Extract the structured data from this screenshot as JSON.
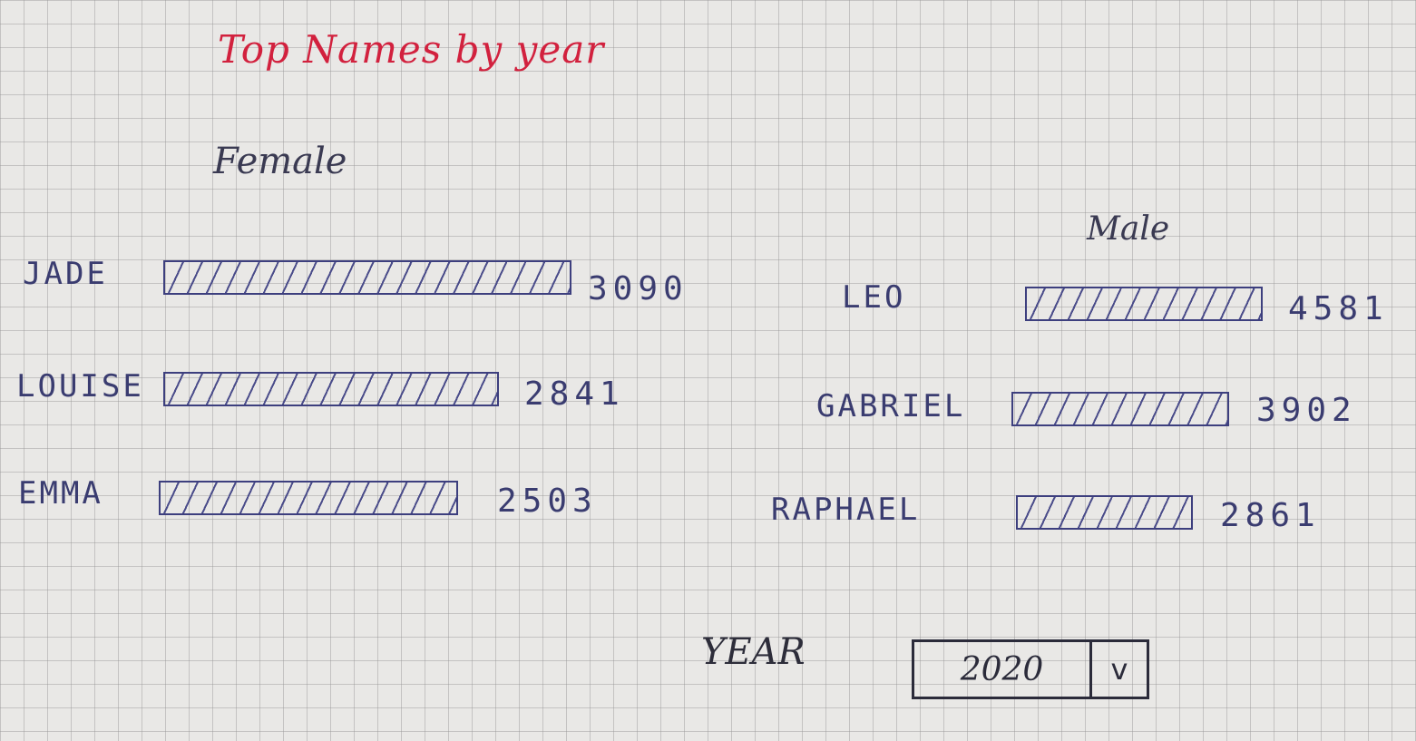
{
  "title": "Top Names by year",
  "female": {
    "label": "Female",
    "rows": [
      {
        "name": "JADE",
        "count": "3090"
      },
      {
        "name": "LOUISE",
        "count": "2841"
      },
      {
        "name": "EMMA",
        "count": "2503"
      }
    ]
  },
  "male": {
    "label": "Male",
    "rows": [
      {
        "name": "LEO",
        "count": "4581"
      },
      {
        "name": "GABRIEL",
        "count": "3902"
      },
      {
        "name": "RAPHAEL",
        "count": "2861"
      }
    ]
  },
  "year_selector": {
    "label": "YEAR",
    "value": "2020",
    "chevron_icon": "chevron-down-icon",
    "chevron_glyph": "v"
  },
  "colors": {
    "title": "#d2213e",
    "ink": "#3d3f7e"
  }
}
